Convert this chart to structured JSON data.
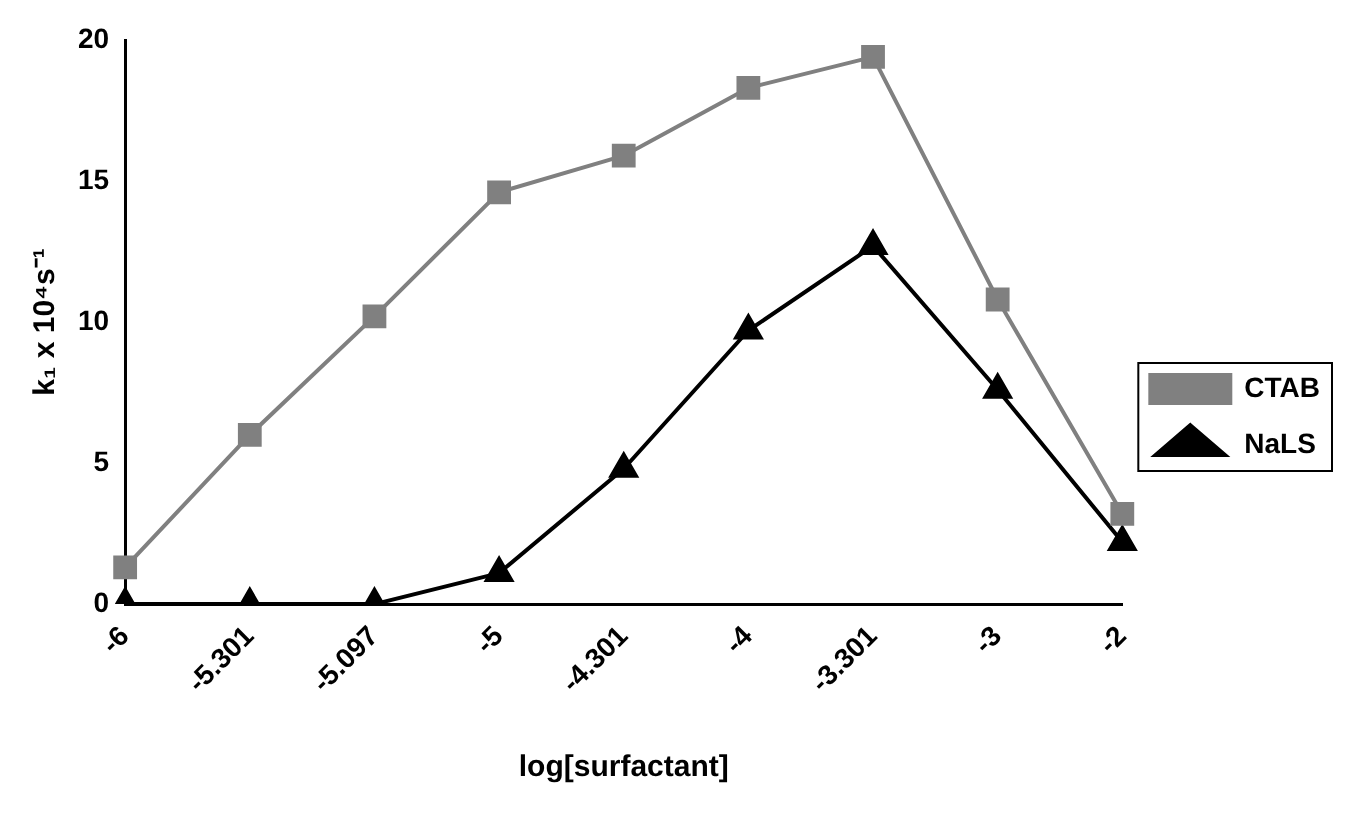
{
  "chart_data": {
    "type": "line",
    "xlabel": "log[surfactant]",
    "ylabel": "k₁ x 10⁴s⁻¹",
    "categories": [
      "-6",
      "-5.301",
      "-5.097",
      "-5",
      "-4.301",
      "-4",
      "-3.301",
      "-3",
      "-2"
    ],
    "ylim": [
      0,
      20
    ],
    "yticks": [
      0,
      5,
      10,
      15,
      20
    ],
    "grid": false,
    "legend": "right",
    "line_style": "solid",
    "series": [
      {
        "name": "CTAB",
        "color": "#808080",
        "marker": "square",
        "values": [
          1.3,
          6,
          10.2,
          14.6,
          15.9,
          18.3,
          19.4,
          10.8,
          3.2
        ]
      },
      {
        "name": "NaLS",
        "color": "#000000",
        "marker": "triangle",
        "values": [
          0,
          0,
          0,
          1.1,
          4.8,
          9.7,
          12.7,
          7.6,
          2.2
        ]
      }
    ]
  }
}
